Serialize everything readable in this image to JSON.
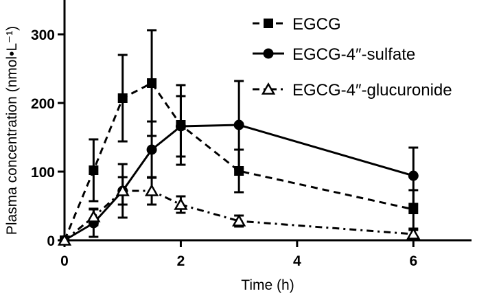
{
  "chart_data": {
    "type": "line",
    "xlabel": "Time (h)",
    "ylabel": "Plasma concentration  (nmol•L⁻¹)",
    "xlim": [
      0,
      7
    ],
    "ylim": [
      0,
      350
    ],
    "xticks": [
      0,
      2,
      4,
      6
    ],
    "yticks": [
      0,
      100,
      200,
      300
    ],
    "grid": false,
    "legend_position": "top-right",
    "series": [
      {
        "name": "EGCG",
        "marker": "square",
        "line": "dashed",
        "x": [
          0,
          0.5,
          1,
          1.5,
          2,
          3,
          6
        ],
        "y": [
          0,
          102,
          207,
          229,
          168,
          101,
          45
        ],
        "error": [
          0,
          45,
          63,
          77,
          58,
          31,
          28
        ]
      },
      {
        "name": "EGCG-4″-sulfate",
        "marker": "circle",
        "line": "solid",
        "x": [
          0,
          0.5,
          1,
          1.5,
          2,
          3,
          6
        ],
        "y": [
          0,
          25,
          72,
          132,
          166,
          168,
          94
        ],
        "error": [
          0,
          20,
          39,
          41,
          44,
          64,
          41
        ]
      },
      {
        "name": "EGCG-4″-glucuronide",
        "marker": "triangle-open",
        "line": "dash-dot",
        "x": [
          0,
          0.5,
          1,
          1.5,
          2,
          3,
          6
        ],
        "y": [
          0,
          34,
          72,
          72,
          52,
          28,
          9
        ],
        "error": [
          0,
          12,
          20,
          20,
          12,
          8,
          6
        ]
      }
    ]
  }
}
